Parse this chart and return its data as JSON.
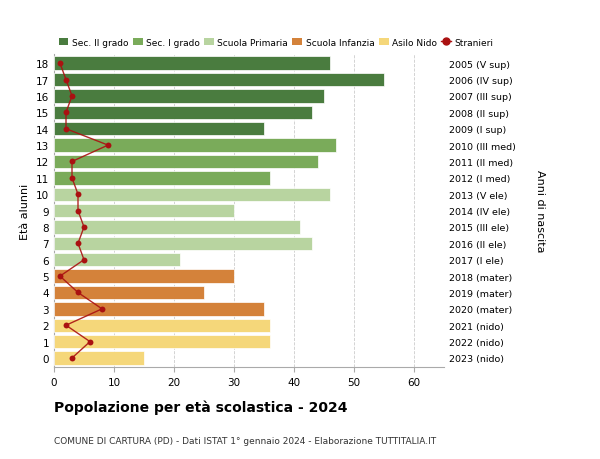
{
  "ages": [
    18,
    17,
    16,
    15,
    14,
    13,
    12,
    11,
    10,
    9,
    8,
    7,
    6,
    5,
    4,
    3,
    2,
    1,
    0
  ],
  "right_labels": [
    "2005 (V sup)",
    "2006 (IV sup)",
    "2007 (III sup)",
    "2008 (II sup)",
    "2009 (I sup)",
    "2010 (III med)",
    "2011 (II med)",
    "2012 (I med)",
    "2013 (V ele)",
    "2014 (IV ele)",
    "2015 (III ele)",
    "2016 (II ele)",
    "2017 (I ele)",
    "2018 (mater)",
    "2019 (mater)",
    "2020 (mater)",
    "2021 (nido)",
    "2022 (nido)",
    "2023 (nido)"
  ],
  "bar_values": [
    46,
    55,
    45,
    43,
    35,
    47,
    44,
    36,
    46,
    30,
    41,
    43,
    21,
    30,
    25,
    35,
    36,
    36,
    15
  ],
  "stranieri": [
    1,
    2,
    3,
    2,
    2,
    9,
    3,
    3,
    4,
    4,
    5,
    4,
    5,
    1,
    4,
    8,
    2,
    6,
    3
  ],
  "categories": {
    "Sec. II grado": {
      "ages": [
        14,
        15,
        16,
        17,
        18
      ],
      "color": "#4a7c3f"
    },
    "Sec. I grado": {
      "ages": [
        11,
        12,
        13
      ],
      "color": "#7aab5a"
    },
    "Scuola Primaria": {
      "ages": [
        6,
        7,
        8,
        9,
        10
      ],
      "color": "#b8d4a0"
    },
    "Scuola Infanzia": {
      "ages": [
        3,
        4,
        5
      ],
      "color": "#d4823a"
    },
    "Asilo Nido": {
      "ages": [
        0,
        1,
        2
      ],
      "color": "#f5d77a"
    }
  },
  "legend_order": [
    "Sec. II grado",
    "Sec. I grado",
    "Scuola Primaria",
    "Scuola Infanzia",
    "Asilo Nido",
    "Stranieri"
  ],
  "legend_colors": {
    "Sec. II grado": "#4a7c3f",
    "Sec. I grado": "#7aab5a",
    "Scuola Primaria": "#b8d4a0",
    "Scuola Infanzia": "#d4823a",
    "Asilo Nido": "#f5d77a",
    "Stranieri": "#aa1111"
  },
  "ylabel_left": "Età alunni",
  "ylabel_right": "Anni di nascita",
  "title": "Popolazione per età scolastica - 2024",
  "subtitle": "COMUNE DI CARTURA (PD) - Dati ISTAT 1° gennaio 2024 - Elaborazione TUTTITALIA.IT",
  "xlim": [
    0,
    65
  ],
  "xticks": [
    0,
    10,
    20,
    30,
    40,
    50,
    60
  ],
  "bg_color": "#ffffff",
  "grid_color": "#cccccc"
}
